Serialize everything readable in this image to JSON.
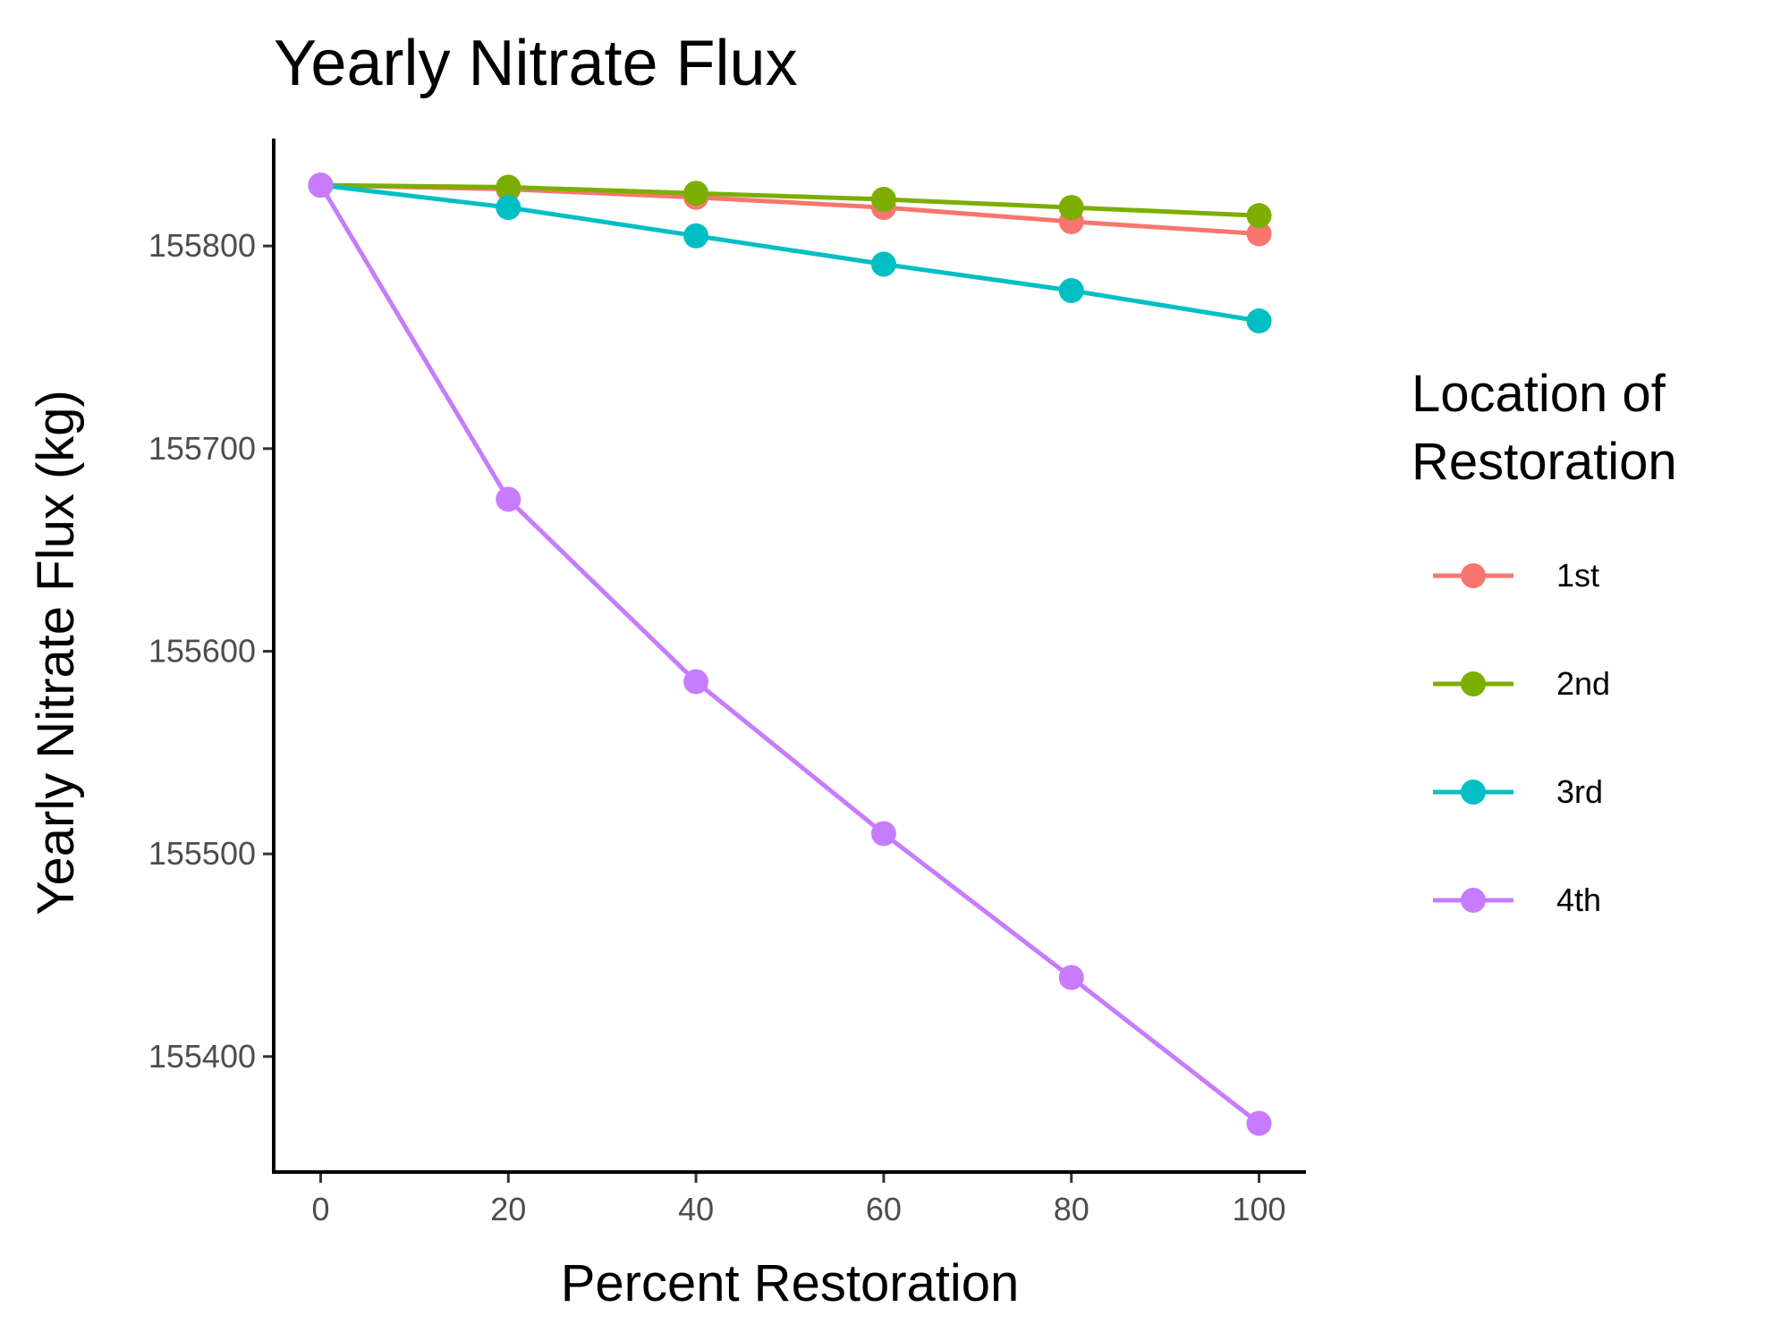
{
  "chart_data": {
    "type": "line",
    "title": "Yearly Nitrate Flux",
    "xlabel": "Percent Restoration",
    "ylabel": "Yearly Nitrate Flux (kg)",
    "x": [
      0,
      20,
      40,
      60,
      80,
      100
    ],
    "xlim": [
      -5,
      105
    ],
    "ylim": [
      155343,
      155853
    ],
    "x_ticks": [
      0,
      20,
      40,
      60,
      80,
      100
    ],
    "y_ticks": [
      155400,
      155500,
      155600,
      155700,
      155800
    ],
    "grid": false,
    "legend": {
      "title_lines": [
        "Location of",
        "Restoration"
      ],
      "placement": "right"
    },
    "series": [
      {
        "name": "1st",
        "color": "#F8766D",
        "values": [
          155830,
          155828,
          155824,
          155819,
          155812,
          155806
        ]
      },
      {
        "name": "2nd",
        "color": "#7CAE00",
        "values": [
          155830,
          155829,
          155826,
          155823,
          155819,
          155815
        ]
      },
      {
        "name": "3rd",
        "color": "#00BFC4",
        "values": [
          155830,
          155819,
          155805,
          155791,
          155778,
          155763
        ]
      },
      {
        "name": "4th",
        "color": "#C77CFF",
        "values": [
          155830,
          155675,
          155585,
          155510,
          155439,
          155367
        ]
      }
    ]
  }
}
